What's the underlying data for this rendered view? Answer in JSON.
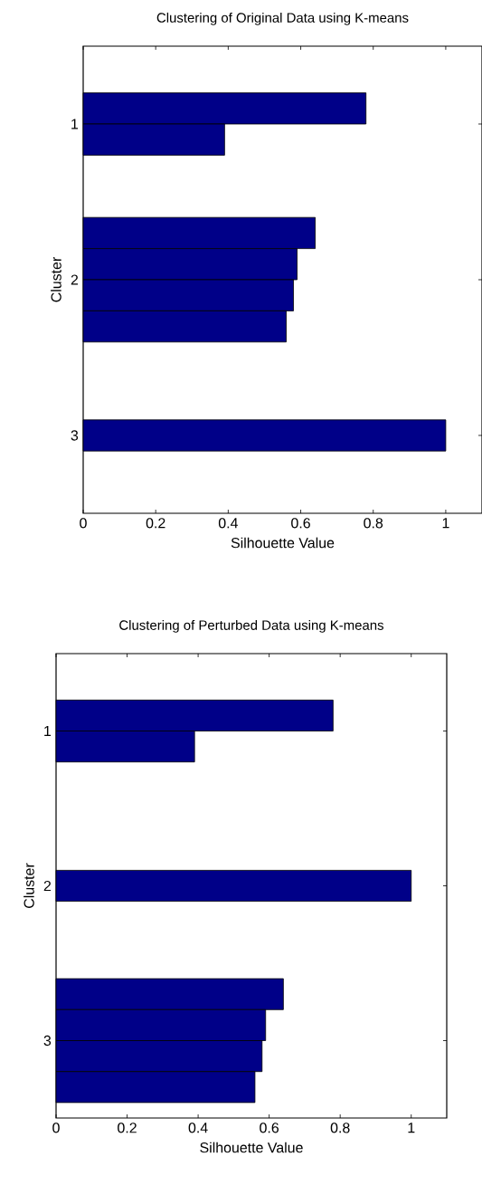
{
  "chart_data": [
    {
      "type": "bar",
      "orientation": "horizontal",
      "title": "Clustering of Original Data using K-means",
      "xlabel": "Silhouette Value",
      "ylabel": "Cluster",
      "color": "#000088",
      "categories": [
        "1",
        "2",
        "3"
      ],
      "series": [
        {
          "values": [
            0.78,
            0.64,
            1.0
          ]
        },
        {
          "values": [
            0.39,
            0.59,
            null
          ]
        },
        {
          "values": [
            null,
            0.58,
            null
          ]
        },
        {
          "values": [
            null,
            0.56,
            null
          ]
        }
      ],
      "xlim": [
        0,
        1.1
      ],
      "xticks": [
        0,
        0.2,
        0.4,
        0.6,
        0.8,
        1
      ]
    },
    {
      "type": "bar",
      "orientation": "horizontal",
      "title": "Clustering of Perturbed Data using K-means",
      "xlabel": "Silhouette Value",
      "ylabel": "Cluster",
      "color": "#000088",
      "categories": [
        "1",
        "2",
        "3"
      ],
      "series": [
        {
          "values": [
            0.78,
            1.0,
            0.64
          ]
        },
        {
          "values": [
            0.39,
            null,
            0.59
          ]
        },
        {
          "values": [
            null,
            null,
            0.58
          ]
        },
        {
          "values": [
            null,
            null,
            0.56
          ]
        }
      ],
      "xlim": [
        0,
        1.1
      ],
      "xticks": [
        0,
        0.2,
        0.4,
        0.6,
        0.8,
        1
      ]
    }
  ]
}
